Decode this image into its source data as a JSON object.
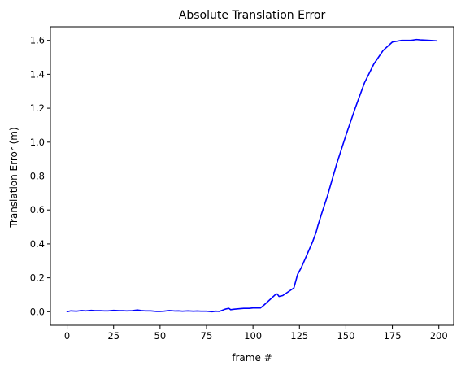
{
  "chart_data": {
    "type": "line",
    "title": "Absolute Translation Error",
    "xlabel": "frame #",
    "ylabel": "Translation Error (m)",
    "xlim": [
      -9,
      208
    ],
    "ylim": [
      -0.08,
      1.68
    ],
    "xticks": [
      0,
      25,
      50,
      75,
      100,
      125,
      150,
      175,
      200
    ],
    "yticks": [
      0.0,
      0.2,
      0.4,
      0.6,
      0.8,
      1.0,
      1.2,
      1.4,
      1.6
    ],
    "xtick_labels": [
      "0",
      "25",
      "50",
      "75",
      "100",
      "125",
      "150",
      "175",
      "200"
    ],
    "ytick_labels": [
      "0.0",
      "0.2",
      "0.4",
      "0.6",
      "0.8",
      "1.0",
      "1.2",
      "1.4",
      "1.6"
    ],
    "grid": false,
    "legend": "none",
    "series": [
      {
        "color": "#0000ff",
        "x": [
          0,
          2,
          5,
          8,
          10,
          13,
          15,
          18,
          20,
          22,
          25,
          28,
          30,
          32,
          35,
          38,
          40,
          42,
          45,
          48,
          50,
          52,
          55,
          58,
          60,
          62,
          65,
          68,
          70,
          72,
          75,
          78,
          80,
          82,
          85,
          87,
          88,
          90,
          93,
          95,
          98,
          100,
          102,
          104,
          106,
          108,
          110,
          112,
          113,
          114,
          116,
          118,
          120,
          122,
          124,
          126,
          128,
          130,
          132,
          134,
          135,
          137,
          140,
          145,
          150,
          155,
          160,
          165,
          170,
          175,
          180,
          182,
          183,
          185,
          188,
          190,
          195,
          199
        ],
        "y": [
          0.0,
          0.005,
          0.003,
          0.007,
          0.005,
          0.008,
          0.006,
          0.006,
          0.005,
          0.005,
          0.008,
          0.006,
          0.006,
          0.005,
          0.006,
          0.01,
          0.007,
          0.005,
          0.005,
          0.002,
          0.002,
          0.003,
          0.007,
          0.004,
          0.005,
          0.003,
          0.005,
          0.003,
          0.004,
          0.003,
          0.003,
          0.0,
          0.003,
          0.002,
          0.015,
          0.02,
          0.012,
          0.015,
          0.018,
          0.02,
          0.02,
          0.022,
          0.022,
          0.022,
          0.04,
          0.06,
          0.08,
          0.1,
          0.105,
          0.09,
          0.095,
          0.11,
          0.125,
          0.14,
          0.22,
          0.26,
          0.31,
          0.36,
          0.41,
          0.47,
          0.51,
          0.58,
          0.68,
          0.87,
          1.04,
          1.2,
          1.35,
          1.46,
          1.54,
          1.59,
          1.6,
          1.6,
          1.6,
          1.6,
          1.605,
          1.603,
          1.6,
          1.597
        ]
      }
    ]
  }
}
